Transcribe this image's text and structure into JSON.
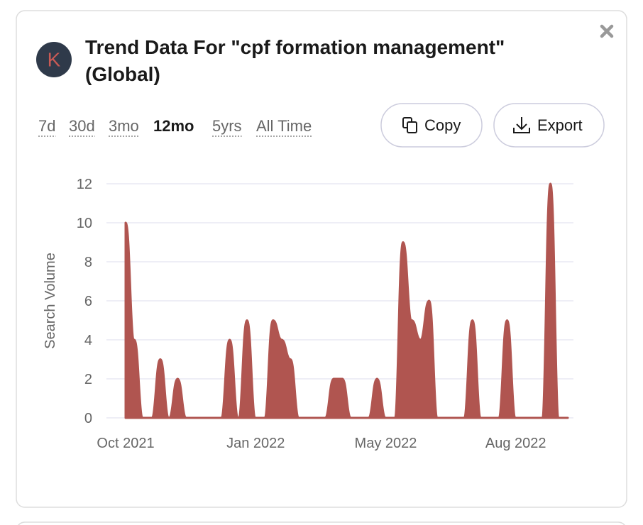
{
  "logo": "K",
  "title_lines": [
    "Trend Data For \"cpf formation management\"",
    "(Global)"
  ],
  "tabs": [
    "7d",
    "30d",
    "3mo",
    "12mo",
    "5yrs",
    "All Time"
  ],
  "active_tab": 3,
  "buttons": {
    "copy": "Copy",
    "export": "Export"
  },
  "chart_data": {
    "type": "area",
    "ylabel": "Search Volume",
    "color": "#b05550",
    "grid": true,
    "ylim": [
      0,
      12
    ],
    "yticks": [
      0,
      2,
      4,
      6,
      8,
      10,
      12
    ],
    "categories": [
      "Oct 2021",
      null,
      null,
      null,
      null,
      null,
      null,
      null,
      null,
      null,
      null,
      null,
      null,
      null,
      null,
      "Jan 2022",
      null,
      null,
      null,
      null,
      null,
      null,
      null,
      null,
      null,
      null,
      null,
      null,
      null,
      null,
      "May 2022",
      null,
      null,
      null,
      null,
      null,
      null,
      null,
      null,
      null,
      null,
      null,
      null,
      null,
      null,
      "Aug 2022",
      null,
      null,
      null,
      null,
      null,
      null
    ],
    "values": [
      10,
      4,
      0,
      0,
      3,
      0,
      2,
      0,
      0,
      0,
      0,
      0,
      4,
      0,
      5,
      0,
      0,
      5,
      4,
      3,
      0,
      0,
      0,
      0,
      2,
      2,
      0,
      0,
      0,
      2,
      0,
      0,
      9,
      5,
      4,
      6,
      0,
      0,
      0,
      0,
      5,
      0,
      0,
      0,
      5,
      0,
      0,
      0,
      0,
      12,
      0,
      0
    ]
  }
}
